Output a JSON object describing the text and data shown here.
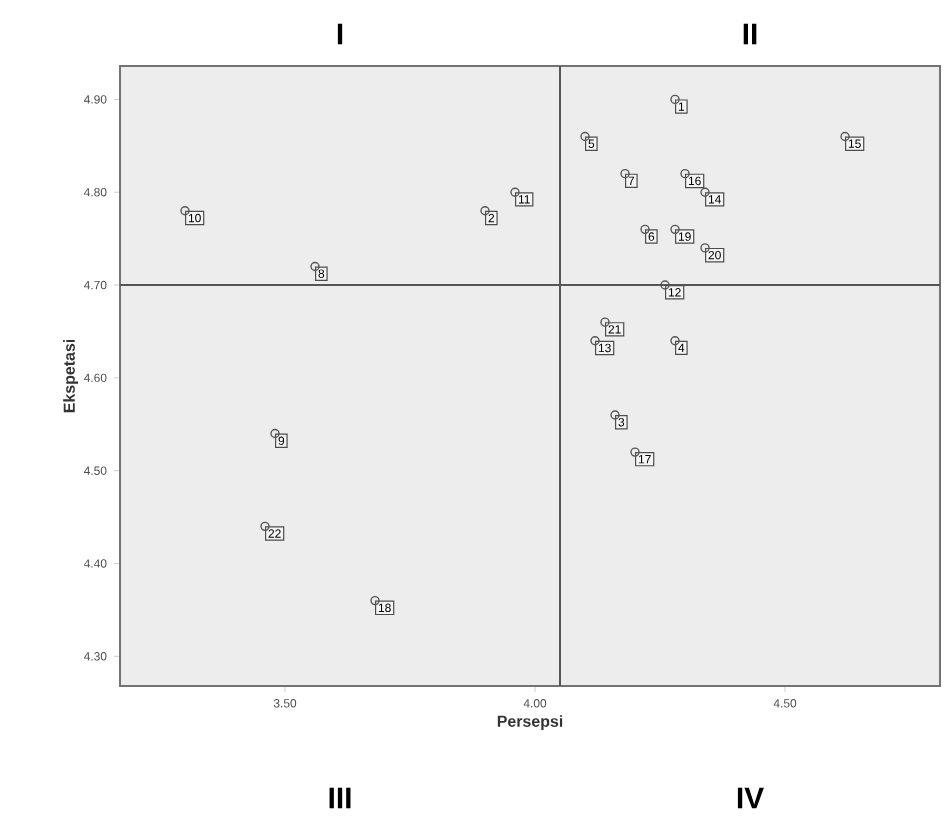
{
  "chart_data": {
    "type": "scatter",
    "xlabel": "Persepsi",
    "ylabel": "Ekspetasi",
    "xlim": [
      3.17,
      4.81
    ],
    "ylim": [
      4.268,
      4.936
    ],
    "xticks": [
      {
        "value": 3.5,
        "label": "3.50"
      },
      {
        "value": 4.0,
        "label": "4.00"
      },
      {
        "value": 4.5,
        "label": "4.50"
      }
    ],
    "yticks": [
      {
        "value": 4.3,
        "label": "4.30"
      },
      {
        "value": 4.4,
        "label": "4.40"
      },
      {
        "value": 4.5,
        "label": "4.50"
      },
      {
        "value": 4.6,
        "label": "4.60"
      },
      {
        "value": 4.7,
        "label": "4.70"
      },
      {
        "value": 4.8,
        "label": "4.80"
      },
      {
        "value": 4.9,
        "label": "4.90"
      }
    ],
    "marker": "circle",
    "grid": false,
    "series": [
      {
        "color": "#555555",
        "x": [
          4.28,
          3.9,
          4.16,
          4.28,
          4.1,
          4.22,
          4.18,
          3.56,
          3.48,
          3.3,
          3.96,
          4.26,
          4.12,
          4.34,
          4.62,
          4.3,
          4.2,
          3.68,
          4.28,
          4.34,
          4.14,
          3.46
        ],
        "values": [
          4.9,
          4.78,
          4.56,
          4.64,
          4.86,
          4.76,
          4.82,
          4.72,
          4.54,
          4.78,
          4.8,
          4.7,
          4.64,
          4.8,
          4.86,
          4.82,
          4.52,
          4.36,
          4.76,
          4.74,
          4.66,
          4.44
        ]
      }
    ],
    "ref_lines": [
      {
        "axis": "x",
        "value": 4.05,
        "color": "#555555"
      },
      {
        "axis": "y",
        "value": 4.7,
        "color": "#555555"
      }
    ],
    "annotations": [
      "I",
      "II",
      "III",
      "IV",
      {
        "text": "1",
        "x": 4.28,
        "y": 4.9
      },
      {
        "text": "2",
        "x": 3.9,
        "y": 4.78
      },
      {
        "text": "3",
        "x": 4.16,
        "y": 4.56
      },
      {
        "text": "4",
        "x": 4.28,
        "y": 4.64
      },
      {
        "text": "5",
        "x": 4.1,
        "y": 4.86
      },
      {
        "text": "6",
        "x": 4.22,
        "y": 4.76
      },
      {
        "text": "7",
        "x": 4.18,
        "y": 4.82
      },
      {
        "text": "8",
        "x": 3.56,
        "y": 4.72
      },
      {
        "text": "9",
        "x": 3.48,
        "y": 4.54
      },
      {
        "text": "10",
        "x": 3.3,
        "y": 4.78
      },
      {
        "text": "11",
        "x": 3.96,
        "y": 4.8
      },
      {
        "text": "12",
        "x": 4.26,
        "y": 4.7
      },
      {
        "text": "13",
        "x": 4.12,
        "y": 4.64
      },
      {
        "text": "14",
        "x": 4.34,
        "y": 4.8
      },
      {
        "text": "15",
        "x": 4.62,
        "y": 4.86
      },
      {
        "text": "16",
        "x": 4.3,
        "y": 4.82
      },
      {
        "text": "17",
        "x": 4.2,
        "y": 4.52
      },
      {
        "text": "18",
        "x": 3.68,
        "y": 4.36
      },
      {
        "text": "19",
        "x": 4.28,
        "y": 4.76
      },
      {
        "text": "20",
        "x": 4.34,
        "y": 4.74
      },
      {
        "text": "21",
        "x": 4.14,
        "y": 4.66
      },
      {
        "text": "22",
        "x": 3.46,
        "y": 4.44
      }
    ]
  }
}
